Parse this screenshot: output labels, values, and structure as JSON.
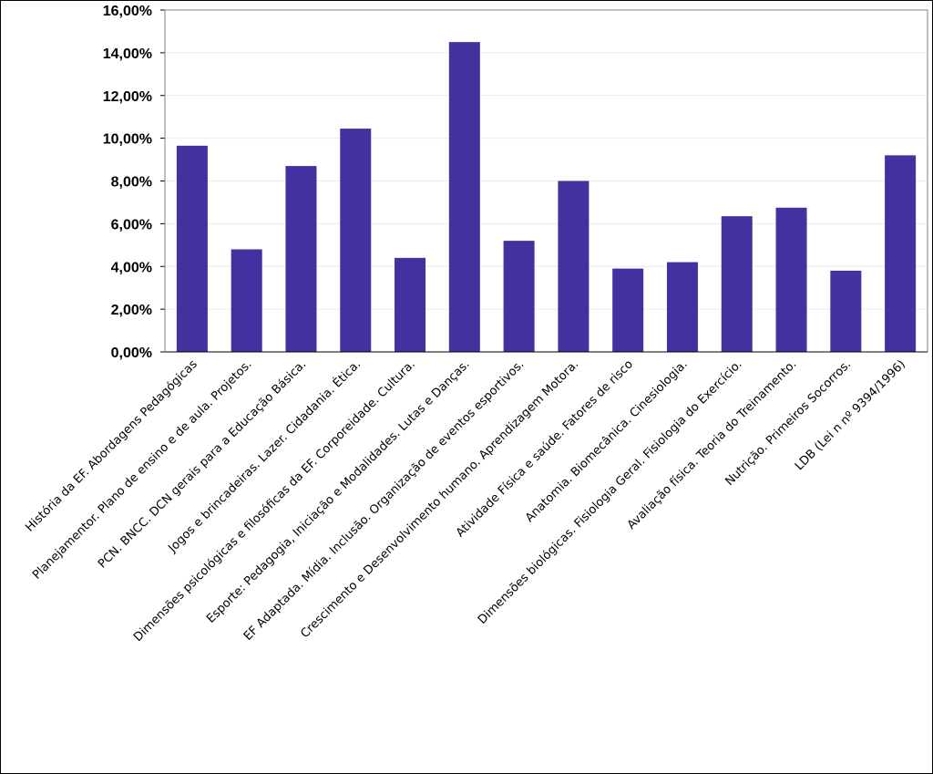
{
  "chart_data": {
    "type": "bar",
    "title": "",
    "xlabel": "",
    "ylabel": "",
    "ylim": [
      0,
      16
    ],
    "y_tick_step": 2,
    "y_tick_labels": [
      "0,00%",
      "2,00%",
      "4,00%",
      "6,00%",
      "8,00%",
      "10,00%",
      "12,00%",
      "14,00%",
      "16,00%"
    ],
    "grid": true,
    "legend": "none",
    "bar_color": "#4232A0",
    "categories": [
      "História da EF. Abordagens Pedagógicas",
      "Planejamentor. Plano de ensino e de aula. Projetos.",
      "PCN. BNCC. DCN gerais para a Educação Básica.",
      "Jogos e brincadeiras. Lazer. Cidadania. Ética.",
      "Dimensões psicológicas e filosóficas da EF. Corporeidade. Cultura.",
      "Esporte: Pedagogia, Iniciação e Modalidades. Lutas e Danças.",
      "EF Adaptada. Mídia. Inclusão. Organização de eventos esportivos.",
      "Crescimento e Desenvolvimento humano. Aprendizagem Motora.",
      "Atividade Física e saúde. Fatores de risco",
      "Anatomia. Biomecânica. Cinesiologia.",
      "Dimensões biológicas. Fisiologia Geral. Fisiologia do Exercício.",
      "Avaliação física. Teoria do Treinamento.",
      "Nutrição. Primeiros Socorros.",
      "LDB (Lei n nº 9394/1996)"
    ],
    "values": [
      9.65,
      4.8,
      8.7,
      10.45,
      4.4,
      14.5,
      5.2,
      8.0,
      3.9,
      4.2,
      6.35,
      6.75,
      3.8,
      9.2
    ]
  }
}
